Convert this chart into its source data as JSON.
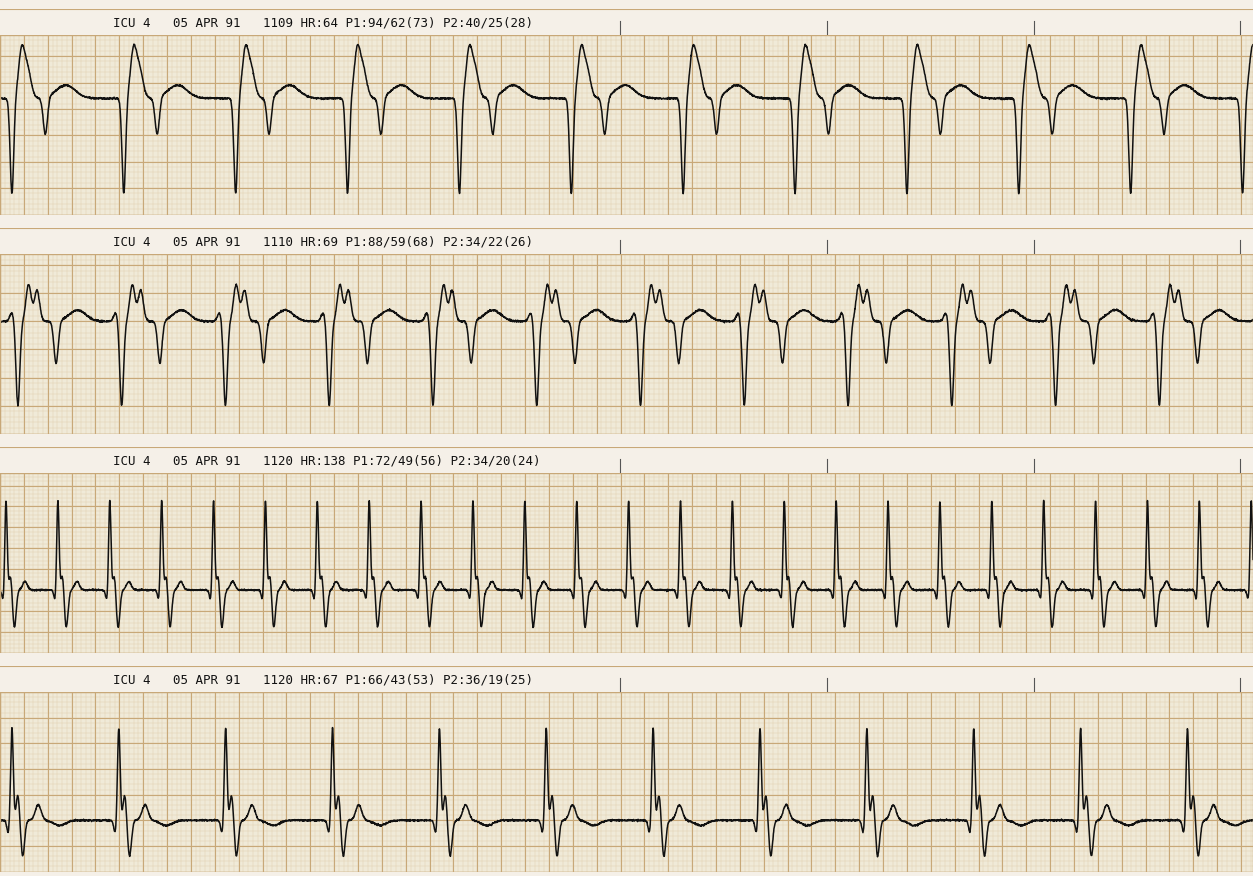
{
  "bg_color_header": "#f5f0e8",
  "bg_color_ecg": "#f0ead8",
  "grid_major_color": "#c8a878",
  "grid_minor_color": "#e0d0b0",
  "ecg_color": "#111111",
  "text_color": "#111111",
  "strip_headers": [
    "ICU 4   05 APR 91   1109 HR:64 P1:94/62(73) P2:40/25(28)",
    "ICU 4   05 APR 91   1110 HR:69 P1:88/59(68) P2:34/22(26)",
    "ICU 4   05 APR 91   1120 HR:138 P1:72/49(56) P2:34/20(24)",
    "ICU 4   05 APR 91   1120 HR:67 P1:66/43(53) P2:36/19(25)"
  ],
  "fig_width": 12.53,
  "fig_height": 8.76,
  "dpi": 100
}
